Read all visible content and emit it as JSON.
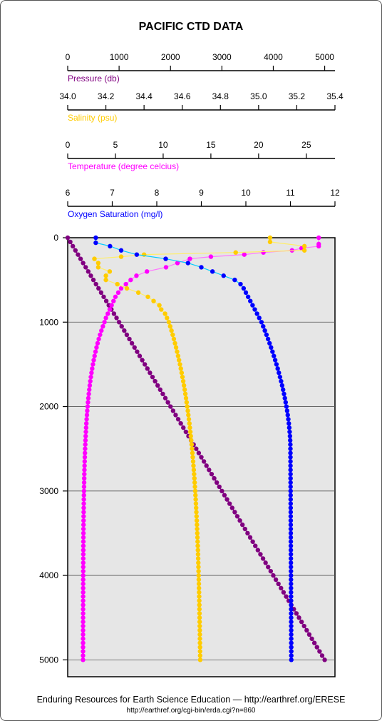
{
  "chart_data": {
    "type": "scatter",
    "title": "PACIFIC CTD DATA",
    "depth_axis": {
      "ticks": [
        "0",
        "1000",
        "2000",
        "3000",
        "4000",
        "5000"
      ],
      "range": [
        0,
        5200
      ],
      "grid": true
    },
    "top_axes": [
      {
        "key": "pressure",
        "label": "Pressure (db)",
        "color": "#800080",
        "range": [
          0,
          5200
        ],
        "ticks": [
          0,
          1000,
          2000,
          3000,
          4000,
          5000
        ],
        "tick_labels": [
          "0",
          "1000",
          "2000",
          "3000",
          "4000",
          "5000"
        ]
      },
      {
        "key": "salinity",
        "label": "Salinity (psu)",
        "color": "#FFCC00",
        "range": [
          34.0,
          35.4
        ],
        "ticks": [
          34.0,
          34.2,
          34.4,
          34.6,
          34.8,
          35.0,
          35.2,
          35.4
        ],
        "tick_labels": [
          "34.0",
          "34.2",
          "34.4",
          "34.6",
          "34.8",
          "35.0",
          "35.2",
          "35.4"
        ]
      },
      {
        "key": "temperature",
        "label": "Temperature (degree celcius)",
        "color": "#FF00FF",
        "range": [
          0,
          28
        ],
        "ticks": [
          0,
          5,
          10,
          15,
          20,
          25
        ],
        "tick_labels": [
          "0",
          "5",
          "10",
          "15",
          "20",
          "25"
        ]
      },
      {
        "key": "oxygen",
        "label": "Oxygen Saturation (mg/l)",
        "color": "#0000FF",
        "range": [
          6,
          12
        ],
        "ticks": [
          6,
          7,
          8,
          9,
          10,
          11,
          12
        ],
        "tick_labels": [
          "6",
          "7",
          "8",
          "9",
          "10",
          "11",
          "12"
        ]
      }
    ],
    "series": [
      {
        "key": "temperature",
        "color": "#FF00FF",
        "line_color": "#FF77FF",
        "points": [
          [
            0,
            26.3
          ],
          [
            75,
            26.3
          ],
          [
            100,
            26.3
          ],
          [
            125,
            24.5
          ],
          [
            150,
            23.5
          ],
          [
            175,
            20.5
          ],
          [
            200,
            18.5
          ],
          [
            225,
            15
          ],
          [
            250,
            12.8
          ],
          [
            300,
            11.5
          ],
          [
            350,
            10.3
          ],
          [
            400,
            8.3
          ],
          [
            450,
            7.2
          ],
          [
            500,
            6.6
          ],
          [
            550,
            6.1
          ],
          [
            600,
            5.6
          ],
          [
            650,
            5.3
          ],
          [
            700,
            5.0
          ],
          [
            750,
            4.8
          ],
          [
            800,
            4.6
          ],
          [
            850,
            4.4
          ],
          [
            900,
            4.2
          ],
          [
            950,
            4.0
          ],
          [
            1000,
            3.85
          ]
        ]
      },
      {
        "key": "salinity",
        "color": "#FFCC00",
        "line_color": "#FFEE66",
        "points": [
          [
            0,
            35.06
          ],
          [
            50,
            35.06
          ],
          [
            100,
            35.24
          ],
          [
            150,
            35.24
          ],
          [
            175,
            34.88
          ],
          [
            200,
            34.4
          ],
          [
            225,
            34.28
          ],
          [
            250,
            34.14
          ],
          [
            300,
            34.16
          ],
          [
            350,
            34.16
          ],
          [
            400,
            34.22
          ],
          [
            450,
            34.2
          ],
          [
            500,
            34.2
          ],
          [
            550,
            34.26
          ],
          [
            600,
            34.31
          ],
          [
            650,
            34.37
          ],
          [
            700,
            34.42
          ],
          [
            750,
            34.45
          ],
          [
            800,
            34.48
          ],
          [
            850,
            34.49
          ],
          [
            900,
            34.51
          ],
          [
            950,
            34.52
          ],
          [
            1000,
            34.53
          ]
        ]
      },
      {
        "key": "oxygen",
        "color": "#0000FF",
        "line_color": "#00CCFF",
        "points": [
          [
            0,
            6.63
          ],
          [
            60,
            6.63
          ],
          [
            100,
            6.95
          ],
          [
            150,
            7.2
          ],
          [
            200,
            7.55
          ],
          [
            250,
            8.2
          ],
          [
            300,
            8.7
          ],
          [
            350,
            9.0
          ],
          [
            400,
            9.25
          ],
          [
            450,
            9.5
          ],
          [
            500,
            9.75
          ],
          [
            550,
            9.88
          ],
          [
            600,
            9.95
          ],
          [
            650,
            10.0
          ],
          [
            700,
            10.05
          ],
          [
            750,
            10.1
          ],
          [
            800,
            10.15
          ],
          [
            850,
            10.2
          ],
          [
            900,
            10.25
          ],
          [
            950,
            10.3
          ],
          [
            1000,
            10.35
          ]
        ]
      }
    ],
    "deep_profiles": {
      "depth_max": 5000,
      "step": 50,
      "temperature": {
        "at_1000": 3.85,
        "at_5000": 1.6
      },
      "salinity": {
        "at_1000": 34.53,
        "at_5000": 34.7
      },
      "oxygen": {
        "at_1000": 10.35,
        "at_2500": 11.0,
        "at_5000": 11.02
      }
    }
  },
  "footer": {
    "line1": "Enduring Resources for Earth Science Education  —  http://earthref.org/ERESE",
    "line2": "http://earthref.org/cgi-bin/erda.cgi?n=860"
  }
}
